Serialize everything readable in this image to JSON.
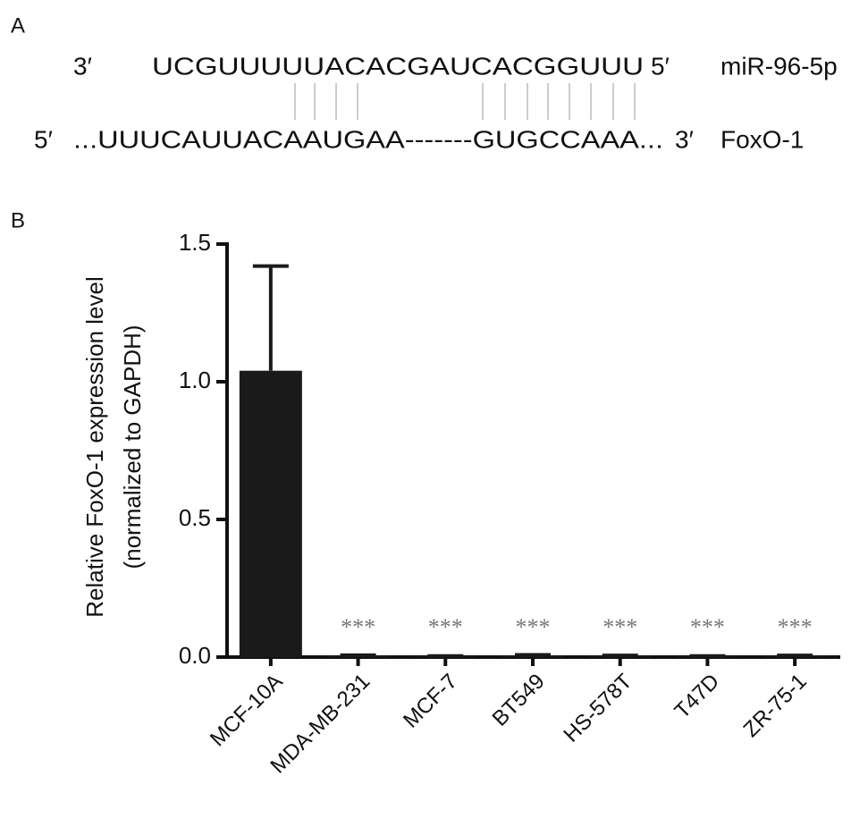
{
  "panel_a": {
    "label": "A",
    "mirna": {
      "left_end": "3′",
      "sequence": "UCGUUUUUACACGAUCACGGUUU",
      "right_end": "5′",
      "name": "miR-96-5p"
    },
    "target": {
      "left_end": "5′",
      "sequence": "...UUUCAUUACAAUGAA-------GUGCCAAA...",
      "right_end": "3′",
      "name": "FoxO-1"
    }
  },
  "panel_b_label": "B",
  "chart_data": {
    "type": "bar",
    "ylabel": [
      "Relative FoxO-1 expression level",
      "(normalized to GAPDH)"
    ],
    "categories": [
      "MCF-10A",
      "MDA-MB-231",
      "MCF-7",
      "BT549",
      "HS-578T",
      "T47D",
      "ZR-75-1"
    ],
    "values": [
      1.04,
      0.005,
      0.003,
      0.006,
      0.004,
      0.003,
      0.004
    ],
    "errors": [
      0.38,
      0.002,
      0.001,
      0.002,
      0.002,
      0.001,
      0.002
    ],
    "annotations": [
      null,
      "***",
      "***",
      "***",
      "***",
      "***",
      "***"
    ],
    "color": "#1a1a1a",
    "ylim": [
      0,
      1.5
    ],
    "yticks": [
      {
        "value": 0,
        "label": "0.0"
      },
      0.5,
      {
        "value": 1,
        "label": "1.0"
      },
      1.5
    ]
  }
}
